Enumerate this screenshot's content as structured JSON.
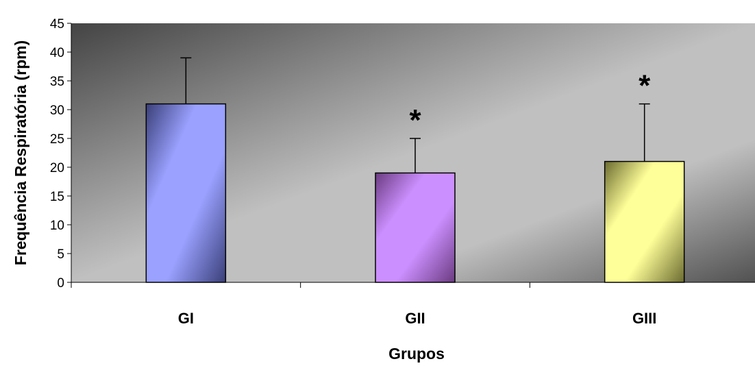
{
  "chart_data": {
    "type": "bar",
    "title": "",
    "xlabel": "Grupos",
    "ylabel": "Frequência Respiratória (rpm)",
    "ylim": [
      0,
      45
    ],
    "yticks": [
      0,
      5,
      10,
      15,
      20,
      25,
      30,
      35,
      40,
      45
    ],
    "grid": false,
    "legend": "none",
    "categories": [
      "GI",
      "GII",
      "GIII"
    ],
    "values": [
      31,
      19,
      21
    ],
    "error_upper": [
      39,
      25,
      31
    ],
    "significance": [
      "",
      "*",
      "*"
    ],
    "bar_colors": [
      "#9aa1ff",
      "#cc8fff",
      "#ffff99"
    ],
    "bar_edge_colors": [
      "#3a3f78",
      "#6a3b80",
      "#6b6b30"
    ],
    "background_colors": [
      "#444444",
      "#c0c0c0",
      "#505050"
    ]
  }
}
